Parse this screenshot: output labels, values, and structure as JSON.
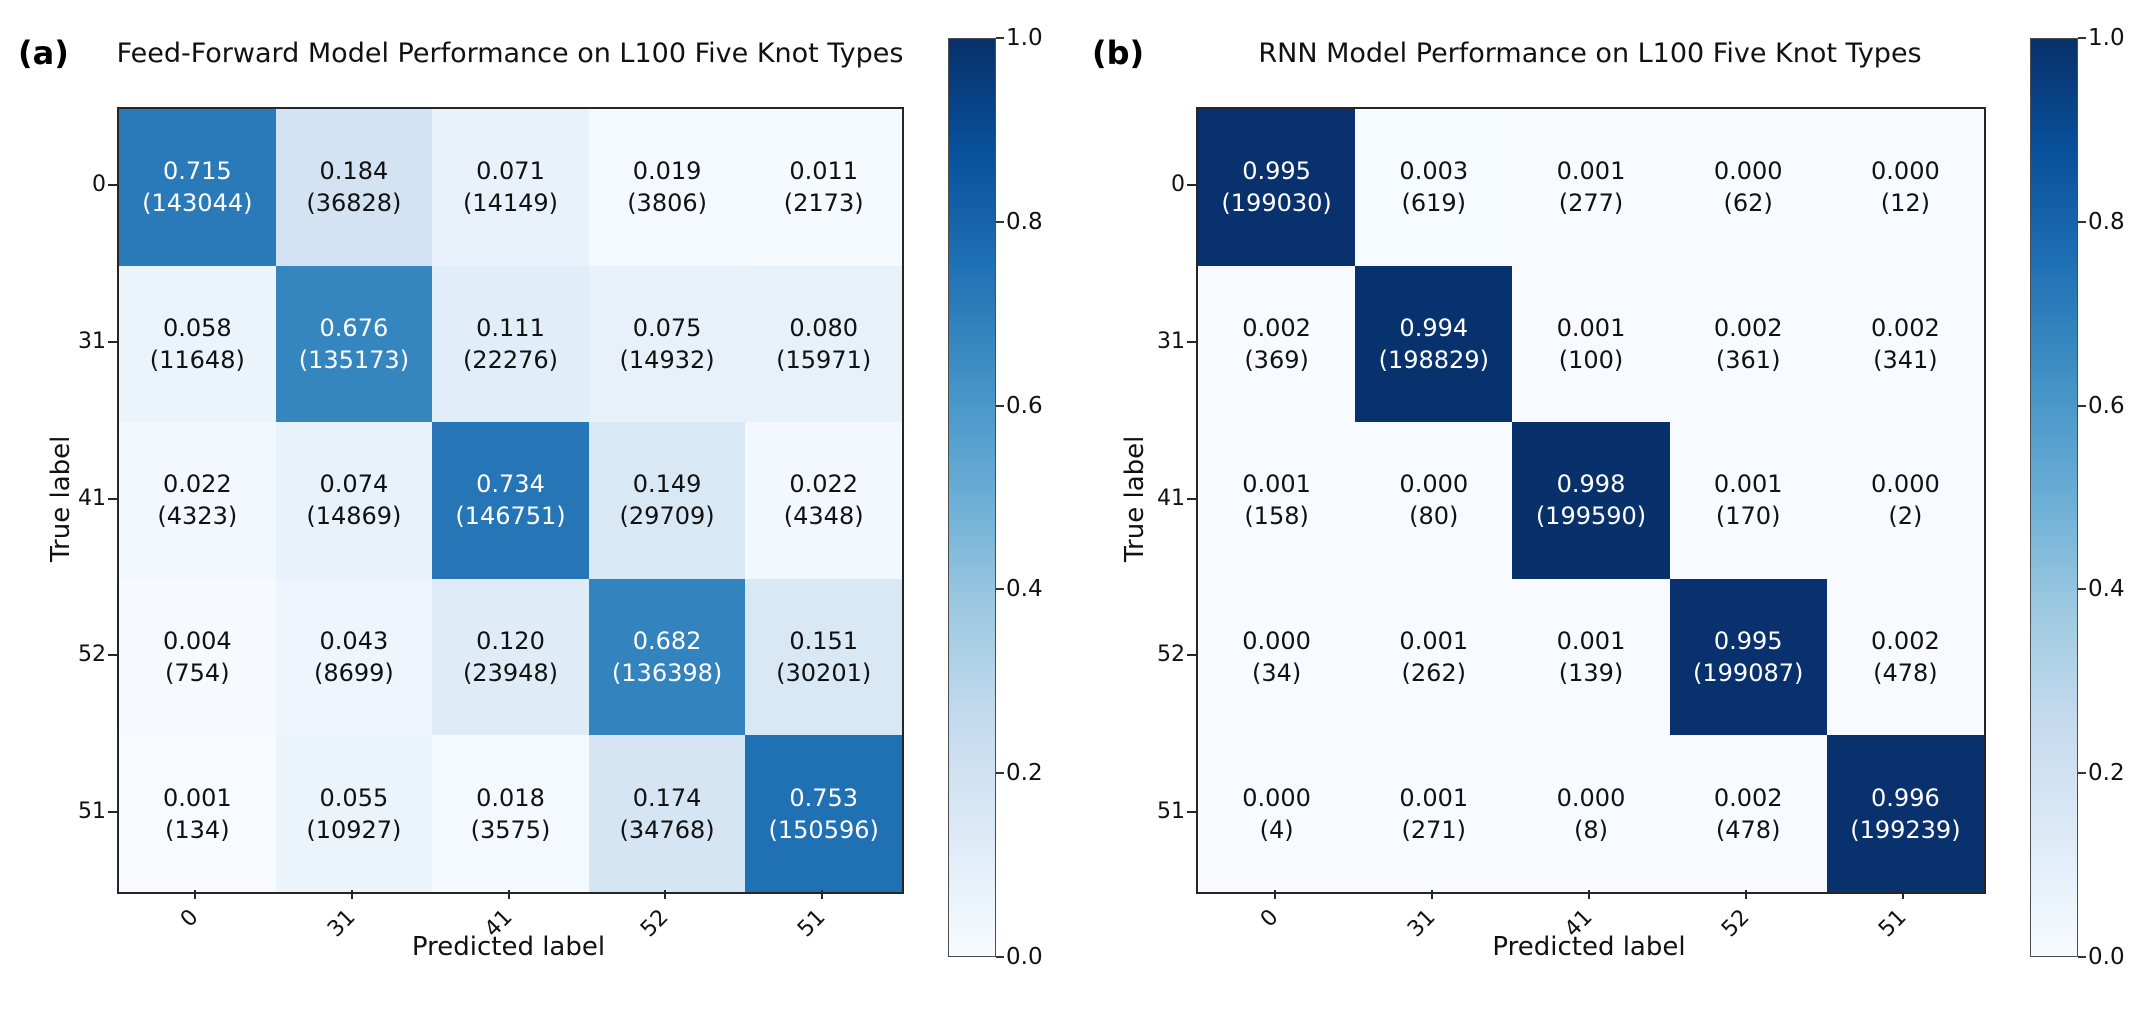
{
  "colors": {
    "background": "#ffffff",
    "colormap_name": "Blues",
    "colormap_stops": [
      "#f7fbff",
      "#deebf7",
      "#c6dbef",
      "#9ecae1",
      "#6baed6",
      "#4292c6",
      "#2171b5",
      "#08519c",
      "#08306b"
    ],
    "cell_text_dark": "#111111",
    "cell_text_light": "#ffffff",
    "axis_color": "#262626"
  },
  "panels": [
    {
      "panel_label": "(a)"
    },
    {
      "panel_label": "(b)"
    }
  ],
  "chart_data": [
    {
      "type": "heatmap",
      "title": "Feed-Forward Model Performance on L100 Five Knot Types",
      "xlabel": "Predicted label",
      "ylabel": "True label",
      "x_tick_labels": [
        "0",
        "31",
        "41",
        "52",
        "51"
      ],
      "y_tick_labels": [
        "0",
        "31",
        "41",
        "52",
        "51"
      ],
      "x_tick_rotation": 45,
      "colormap": "Blues",
      "vmin": 0.0,
      "vmax": 1.0,
      "legend_position": "right-colorbar",
      "colorbar_tick_labels": [
        "1.0",
        "0.8",
        "0.6",
        "0.4",
        "0.2",
        "0.0"
      ],
      "values": [
        [
          0.715,
          0.184,
          0.071,
          0.019,
          0.011
        ],
        [
          0.058,
          0.676,
          0.111,
          0.075,
          0.08
        ],
        [
          0.022,
          0.074,
          0.734,
          0.149,
          0.022
        ],
        [
          0.004,
          0.043,
          0.12,
          0.682,
          0.151
        ],
        [
          0.001,
          0.055,
          0.018,
          0.174,
          0.753
        ]
      ],
      "counts": [
        [
          143044,
          36828,
          14149,
          3806,
          2173
        ],
        [
          11648,
          135173,
          22276,
          14932,
          15971
        ],
        [
          4323,
          14869,
          146751,
          29709,
          4348
        ],
        [
          754,
          8699,
          23948,
          136398,
          30201
        ],
        [
          134,
          10927,
          3575,
          34768,
          150596
        ]
      ]
    },
    {
      "type": "heatmap",
      "title": "RNN Model Performance on L100 Five Knot Types",
      "xlabel": "Predicted label",
      "ylabel": "True label",
      "x_tick_labels": [
        "0",
        "31",
        "41",
        "52",
        "51"
      ],
      "y_tick_labels": [
        "0",
        "31",
        "41",
        "52",
        "51"
      ],
      "x_tick_rotation": 45,
      "colormap": "Blues",
      "vmin": 0.0,
      "vmax": 1.0,
      "legend_position": "right-colorbar",
      "colorbar_tick_labels": [
        "1.0",
        "0.8",
        "0.6",
        "0.4",
        "0.2",
        "0.0"
      ],
      "values": [
        [
          0.995,
          0.003,
          0.001,
          0.0,
          0.0
        ],
        [
          0.002,
          0.994,
          0.001,
          0.002,
          0.002
        ],
        [
          0.001,
          0.0,
          0.998,
          0.001,
          0.0
        ],
        [
          0.0,
          0.001,
          0.001,
          0.995,
          0.002
        ],
        [
          0.0,
          0.001,
          0.0,
          0.002,
          0.996
        ]
      ],
      "counts": [
        [
          199030,
          619,
          277,
          62,
          12
        ],
        [
          369,
          198829,
          100,
          361,
          341
        ],
        [
          158,
          80,
          199590,
          170,
          2
        ],
        [
          34,
          262,
          139,
          199087,
          478
        ],
        [
          4,
          271,
          8,
          478,
          199239
        ]
      ]
    }
  ]
}
